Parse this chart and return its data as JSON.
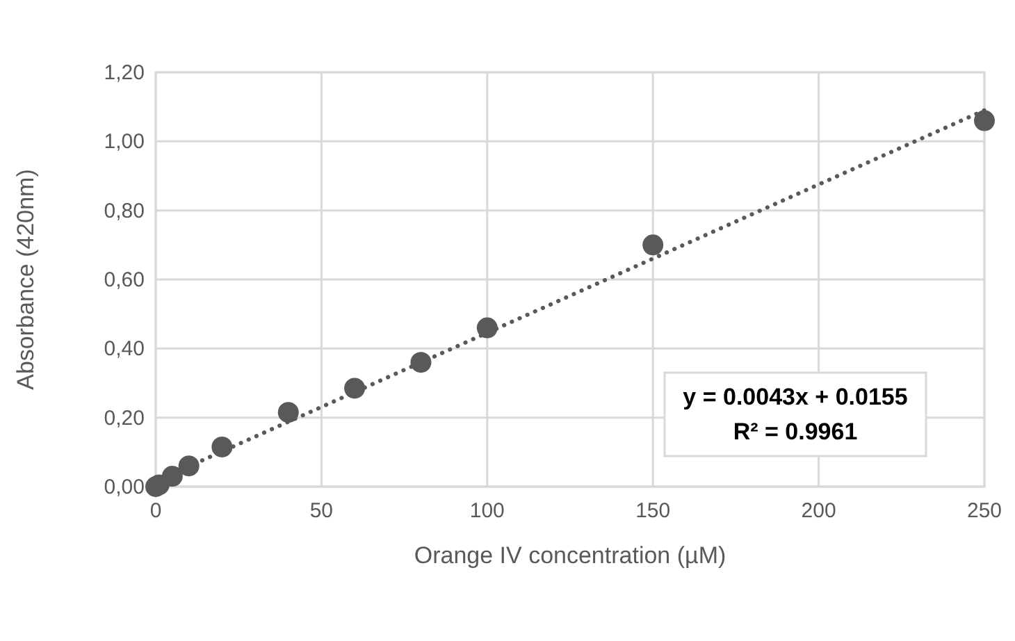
{
  "chart_data": {
    "type": "scatter",
    "xlabel": "Orange IV concentration (µM)",
    "ylabel": "Absorbance (420nm)",
    "xlim": [
      0,
      250
    ],
    "xticks": [
      0,
      50,
      100,
      150,
      200,
      250
    ],
    "ylim": [
      0,
      1.2
    ],
    "yticks": [
      {
        "value": 0,
        "label": "0,00"
      },
      {
        "value": 0.2,
        "label": "0,20"
      },
      {
        "value": 0.4,
        "label": "0,40"
      },
      {
        "value": 0.6,
        "label": "0,60"
      },
      {
        "value": 0.8,
        "label": "0,80"
      },
      {
        "value": 1,
        "label": "1,00"
      },
      {
        "value": 1.2,
        "label": "1,20"
      }
    ],
    "grid": true,
    "marker": "circle",
    "annotations": [
      "y = 0.0043x + 0.0155",
      "R² = 0.9961"
    ],
    "series": [
      {
        "color": "#595959",
        "x": [
          0,
          1,
          5,
          10,
          20,
          40,
          60,
          80,
          100,
          150,
          250
        ],
        "values": [
          0.0,
          0.005,
          0.03,
          0.06,
          0.115,
          0.215,
          0.285,
          0.36,
          0.46,
          0.7,
          1.06
        ]
      },
      {
        "type": "line",
        "color": "#595959",
        "line_style": "dotted",
        "marker": "none",
        "x": [
          0,
          250
        ],
        "values": [
          0.016,
          1.09
        ]
      }
    ]
  }
}
